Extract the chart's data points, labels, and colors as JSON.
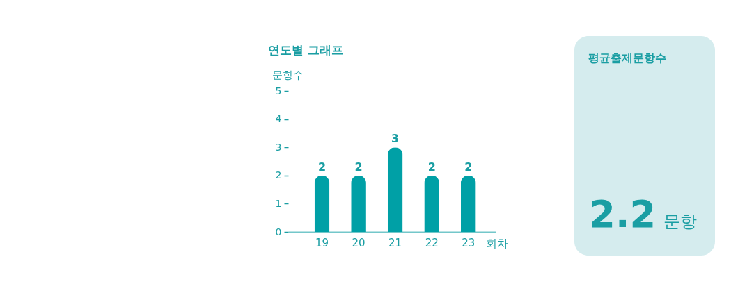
{
  "chart_data": [
    {
      "type": "bar",
      "title": "연도별 그래프",
      "ylabel": "문항수",
      "xlabel": "회차",
      "categories": [
        "19",
        "20",
        "21",
        "22",
        "23"
      ],
      "values": [
        2,
        2,
        3,
        2,
        2
      ],
      "color": "#00a0a6",
      "ylim": [
        0,
        5
      ],
      "yticks": [
        0,
        1,
        2,
        3,
        4,
        5
      ],
      "data_labels": true
    },
    {
      "type": "other",
      "title": "평균출제문항수",
      "annotations": [
        "2.2",
        "문항"
      ],
      "color": "#d5ecee"
    }
  ]
}
